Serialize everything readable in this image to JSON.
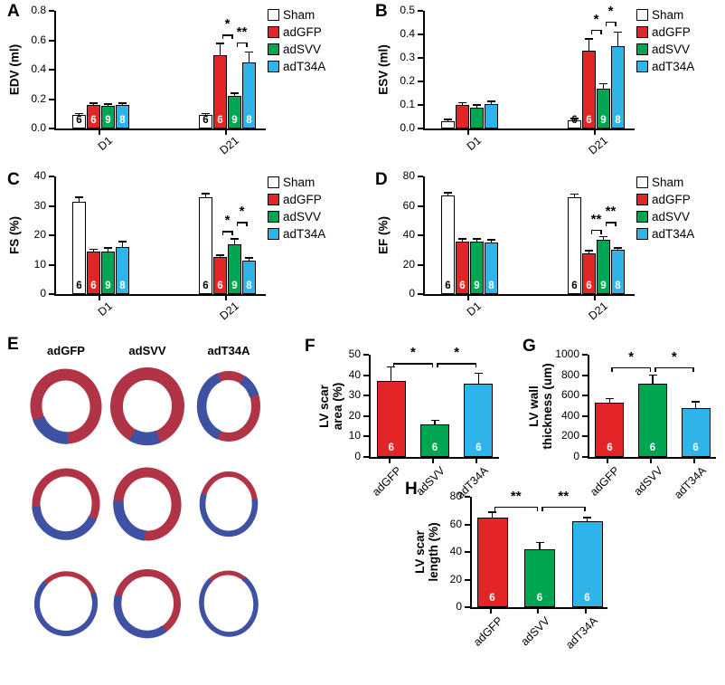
{
  "colors": {
    "sham": "#ffffff",
    "adGFP": "#e42528",
    "adSVV": "#00a551",
    "adT34A": "#2fb4e9",
    "axis": "#000000",
    "histology_red": "#b03445",
    "histology_blue": "#3f51a3"
  },
  "legend_labels": [
    "Sham",
    "adGFP",
    "adSVV",
    "adT34A"
  ],
  "histology": {
    "panel_label": "E",
    "columns": [
      "adGFP",
      "adSVV",
      "adT34A"
    ],
    "rows": 3
  },
  "chart_data": [
    {
      "id": "A",
      "panel_label": "A",
      "type": "grouped-bar",
      "ylabel": "EDV (ml)",
      "ylim": [
        0,
        0.8
      ],
      "yticks": [
        0,
        0.2,
        0.4,
        0.6,
        0.8
      ],
      "yticklabels": [
        "0.0",
        "0.2",
        "0.4",
        "0.6",
        "0.8"
      ],
      "categories": [
        "D1",
        "D21"
      ],
      "series": [
        {
          "name": "Sham",
          "color_key": "sham",
          "values": [
            0.09,
            0.09
          ],
          "errors": [
            0.012,
            0.012
          ],
          "n": [
            "6",
            "6"
          ]
        },
        {
          "name": "adGFP",
          "color_key": "adGFP",
          "values": [
            0.16,
            0.5
          ],
          "errors": [
            0.012,
            0.08
          ],
          "n": [
            "6",
            "6"
          ]
        },
        {
          "name": "adSVV",
          "color_key": "adSVV",
          "values": [
            0.155,
            0.22
          ],
          "errors": [
            0.012,
            0.02
          ],
          "n": [
            "9",
            "9"
          ]
        },
        {
          "name": "adT34A",
          "color_key": "adT34A",
          "values": [
            0.16,
            0.45
          ],
          "errors": [
            0.008,
            0.07
          ],
          "n": [
            "8",
            "8"
          ]
        }
      ],
      "sig": [
        {
          "cat": 1,
          "a": 1,
          "b": 2,
          "label": "*",
          "y": 0.64
        },
        {
          "cat": 1,
          "a": 2,
          "b": 3,
          "label": "**",
          "y": 0.585
        }
      ],
      "legend": true
    },
    {
      "id": "B",
      "panel_label": "B",
      "type": "grouped-bar",
      "ylabel": "ESV (ml)",
      "ylim": [
        0,
        0.5
      ],
      "yticks": [
        0,
        0.1,
        0.2,
        0.3,
        0.4,
        0.5
      ],
      "yticklabels": [
        "0.0",
        "0.1",
        "0.2",
        "0.3",
        "0.4",
        "0.5"
      ],
      "categories": [
        "D1",
        "D21"
      ],
      "series": [
        {
          "name": "Sham",
          "color_key": "sham",
          "values": [
            0.03,
            0.035
          ],
          "errors": [
            0.005,
            0.006
          ],
          "n": [
            null,
            "6"
          ]
        },
        {
          "name": "adGFP",
          "color_key": "adGFP",
          "values": [
            0.1,
            0.33
          ],
          "errors": [
            0.01,
            0.05
          ],
          "n": [
            null,
            "6"
          ]
        },
        {
          "name": "adSVV",
          "color_key": "adSVV",
          "values": [
            0.09,
            0.17
          ],
          "errors": [
            0.01,
            0.02
          ],
          "n": [
            null,
            "9"
          ]
        },
        {
          "name": "adT34A",
          "color_key": "adT34A",
          "values": [
            0.105,
            0.35
          ],
          "errors": [
            0.01,
            0.06
          ],
          "n": [
            null,
            "8"
          ]
        }
      ],
      "sig": [
        {
          "cat": 1,
          "a": 1,
          "b": 2,
          "label": "*",
          "y": 0.42
        },
        {
          "cat": 1,
          "a": 2,
          "b": 3,
          "label": "*",
          "y": 0.455
        }
      ],
      "legend": true
    },
    {
      "id": "C",
      "panel_label": "C",
      "type": "grouped-bar",
      "ylabel": "FS (%)",
      "ylim": [
        0,
        40
      ],
      "yticks": [
        0,
        10,
        20,
        30,
        40
      ],
      "yticklabels": [
        "0",
        "10",
        "20",
        "30",
        "40"
      ],
      "categories": [
        "D1",
        "D21"
      ],
      "series": [
        {
          "name": "Sham",
          "color_key": "sham",
          "values": [
            31.5,
            33
          ],
          "errors": [
            1.5,
            1.2
          ],
          "n": [
            "6",
            "6"
          ]
        },
        {
          "name": "adGFP",
          "color_key": "adGFP",
          "values": [
            14.5,
            12.5
          ],
          "errors": [
            0.8,
            0.8
          ],
          "n": [
            "6",
            "6"
          ]
        },
        {
          "name": "adSVV",
          "color_key": "adSVV",
          "values": [
            14.5,
            17
          ],
          "errors": [
            1.2,
            1.8
          ],
          "n": [
            "9",
            "9"
          ]
        },
        {
          "name": "adT34A",
          "color_key": "adT34A",
          "values": [
            16,
            11.5
          ],
          "errors": [
            1.8,
            0.8
          ],
          "n": [
            "8",
            "8"
          ]
        }
      ],
      "sig": [
        {
          "cat": 1,
          "a": 1,
          "b": 2,
          "label": "*",
          "y": 21.5
        },
        {
          "cat": 1,
          "a": 2,
          "b": 3,
          "label": "*",
          "y": 24.5
        }
      ],
      "legend": true
    },
    {
      "id": "D",
      "panel_label": "D",
      "type": "grouped-bar",
      "ylabel": "EF (%)",
      "ylim": [
        0,
        80
      ],
      "yticks": [
        0,
        20,
        40,
        60,
        80
      ],
      "yticklabels": [
        "0",
        "20",
        "40",
        "60",
        "80"
      ],
      "categories": [
        "D1",
        "D21"
      ],
      "series": [
        {
          "name": "Sham",
          "color_key": "sham",
          "values": [
            67,
            66
          ],
          "errors": [
            2,
            2
          ],
          "n": [
            "6",
            "6"
          ]
        },
        {
          "name": "adGFP",
          "color_key": "adGFP",
          "values": [
            36,
            28
          ],
          "errors": [
            1.5,
            1.5
          ],
          "n": [
            "6",
            "6"
          ]
        },
        {
          "name": "adSVV",
          "color_key": "adSVV",
          "values": [
            36,
            37
          ],
          "errors": [
            1.5,
            2
          ],
          "n": [
            "9",
            "9"
          ]
        },
        {
          "name": "adT34A",
          "color_key": "adT34A",
          "values": [
            35,
            30
          ],
          "errors": [
            2,
            1.5
          ],
          "n": [
            "8",
            "8"
          ]
        }
      ],
      "sig": [
        {
          "cat": 1,
          "a": 1,
          "b": 2,
          "label": "**",
          "y": 44
        },
        {
          "cat": 1,
          "a": 2,
          "b": 3,
          "label": "**",
          "y": 49
        }
      ],
      "legend": true
    },
    {
      "id": "F",
      "panel_label": "F",
      "type": "bar",
      "ylabel_lines": [
        "LV scar",
        "area (%)"
      ],
      "ylim": [
        0,
        50
      ],
      "yticks": [
        0,
        10,
        20,
        30,
        40,
        50
      ],
      "yticklabels": [
        "0",
        "10",
        "20",
        "30",
        "40",
        "50"
      ],
      "categories": [
        "adGFP",
        "adSVV",
        "adT34A"
      ],
      "bar_colors": [
        "adGFP",
        "adSVV",
        "adT34A"
      ],
      "values": [
        37,
        16,
        36
      ],
      "errors": [
        7,
        2,
        5
      ],
      "n": [
        "6",
        "6",
        "6"
      ],
      "sig": [
        {
          "a": 0,
          "b": 1,
          "label": "*",
          "y": 46
        },
        {
          "a": 1,
          "b": 2,
          "label": "*",
          "y": 46
        }
      ],
      "legend": false
    },
    {
      "id": "G",
      "panel_label": "G",
      "type": "bar",
      "ylabel_lines": [
        "LV wall",
        "thickness (um)"
      ],
      "ylim": [
        0,
        1000
      ],
      "yticks": [
        0,
        200,
        400,
        600,
        800,
        1000
      ],
      "yticklabels": [
        "0",
        "200",
        "400",
        "600",
        "800",
        "1000"
      ],
      "categories": [
        "adGFP",
        "adSVV",
        "adT34A"
      ],
      "bar_colors": [
        "adGFP",
        "adSVV",
        "adT34A"
      ],
      "values": [
        530,
        720,
        480
      ],
      "errors": [
        40,
        80,
        60
      ],
      "n": [
        "6",
        "6",
        "6"
      ],
      "sig": [
        {
          "a": 0,
          "b": 1,
          "label": "*",
          "y": 880
        },
        {
          "a": 1,
          "b": 2,
          "label": "*",
          "y": 880
        }
      ],
      "legend": false
    },
    {
      "id": "H",
      "panel_label": "H",
      "type": "bar",
      "ylabel_lines": [
        "LV scar",
        "length (%)"
      ],
      "ylim": [
        0,
        80
      ],
      "yticks": [
        0,
        20,
        40,
        60,
        80
      ],
      "yticklabels": [
        "0",
        "20",
        "40",
        "60",
        "80"
      ],
      "categories": [
        "adGFP",
        "adSVV",
        "adT34A"
      ],
      "bar_colors": [
        "adGFP",
        "adSVV",
        "adT34A"
      ],
      "values": [
        65,
        42,
        62
      ],
      "errors": [
        4,
        5,
        3
      ],
      "n": [
        "6",
        "6",
        "6"
      ],
      "sig": [
        {
          "a": 0,
          "b": 1,
          "label": "**",
          "y": 73
        },
        {
          "a": 1,
          "b": 2,
          "label": "**",
          "y": 73
        }
      ],
      "legend": false
    }
  ]
}
